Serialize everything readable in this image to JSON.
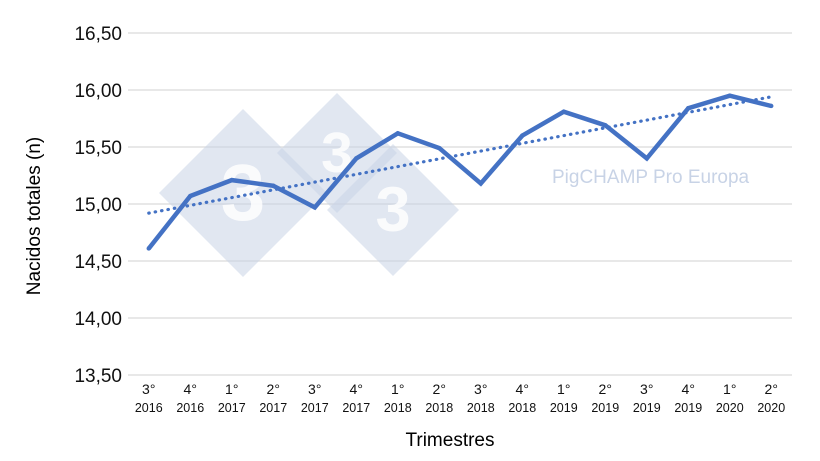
{
  "chart_data": {
    "type": "line",
    "title": "",
    "xlabel": "Trimestres",
    "ylabel": "Nacidos totales (n)",
    "ylim": [
      13.5,
      16.5
    ],
    "yticks": [
      "13,50",
      "14,00",
      "14,50",
      "15,00",
      "15,50",
      "16,00",
      "16,50"
    ],
    "grid": true,
    "legend": "none",
    "categories": [
      {
        "quarter": "3°",
        "year": "2016"
      },
      {
        "quarter": "4°",
        "year": "2016"
      },
      {
        "quarter": "1°",
        "year": "2017"
      },
      {
        "quarter": "2°",
        "year": "2017"
      },
      {
        "quarter": "3°",
        "year": "2017"
      },
      {
        "quarter": "4°",
        "year": "2017"
      },
      {
        "quarter": "1°",
        "year": "2018"
      },
      {
        "quarter": "2°",
        "year": "2018"
      },
      {
        "quarter": "3°",
        "year": "2018"
      },
      {
        "quarter": "4°",
        "year": "2018"
      },
      {
        "quarter": "1°",
        "year": "2019"
      },
      {
        "quarter": "2°",
        "year": "2019"
      },
      {
        "quarter": "3°",
        "year": "2019"
      },
      {
        "quarter": "4°",
        "year": "2019"
      },
      {
        "quarter": "1°",
        "year": "2020"
      },
      {
        "quarter": "2°",
        "year": "2020"
      }
    ],
    "series": [
      {
        "values": [
          14.61,
          15.07,
          15.21,
          15.16,
          14.97,
          15.4,
          15.62,
          15.49,
          15.18,
          15.6,
          15.81,
          15.69,
          15.4,
          15.84,
          15.95,
          15.86
        ],
        "color": "#4472c4",
        "style": "solid"
      }
    ],
    "trendline": {
      "type": "linear",
      "start": 14.92,
      "end": 15.94,
      "color": "#4472c4",
      "style": "dotted"
    }
  },
  "watermark": {
    "text": "PigCHAMP Pro Europa",
    "logo_glyph": "3",
    "color": "#c8d3e6"
  }
}
